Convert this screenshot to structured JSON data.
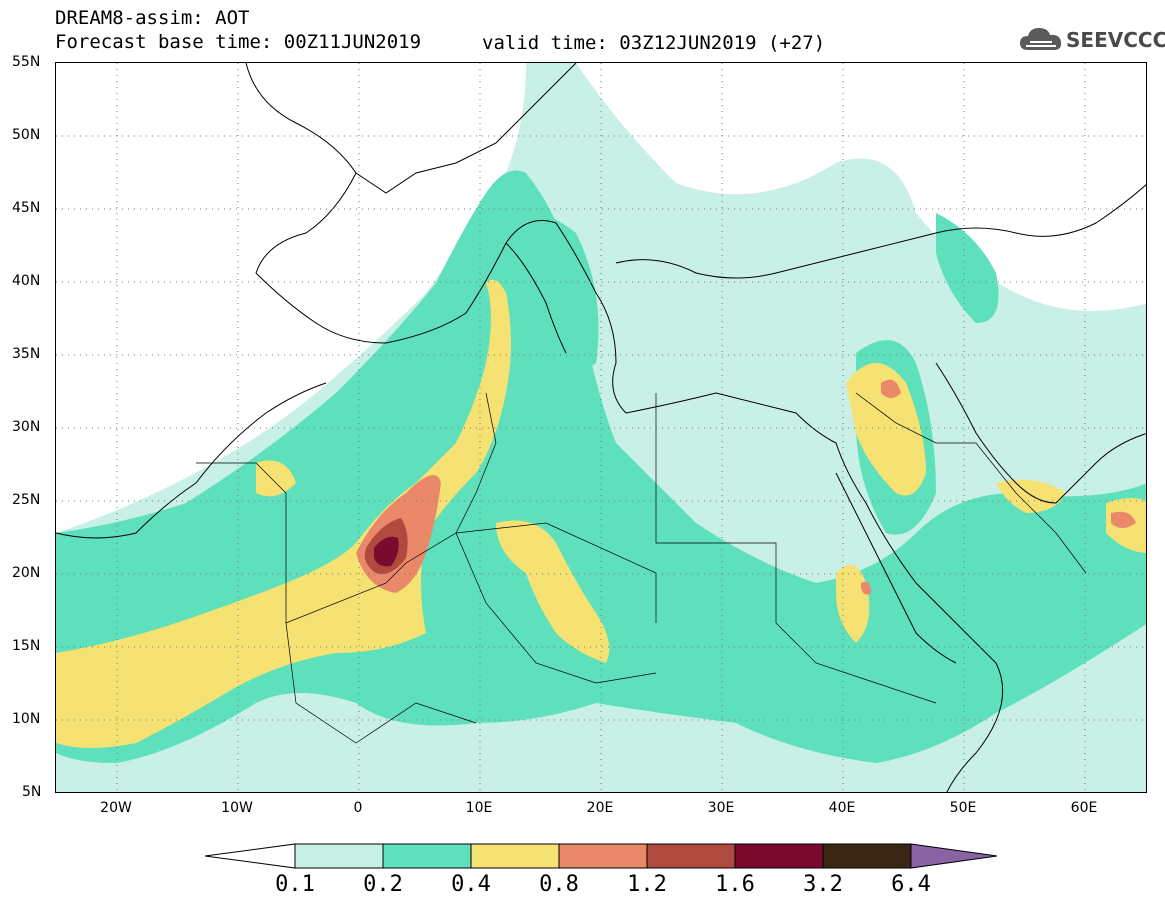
{
  "header": {
    "title": "DREAM8-assim: AOT",
    "base_time": "Forecast base time: 00Z11JUN2019",
    "valid_time": "valid time: 03Z12JUN2019 (+27)",
    "logo_text": "SEEVCCC"
  },
  "axes": {
    "lat_labels": [
      "55N",
      "50N",
      "45N",
      "40N",
      "35N",
      "30N",
      "25N",
      "20N",
      "15N",
      "10N",
      "5N"
    ],
    "lon_labels": [
      "20W",
      "10W",
      "0",
      "10E",
      "20E",
      "30E",
      "40E",
      "50E",
      "60E"
    ]
  },
  "colorbar": {
    "labels": [
      "0.1",
      "0.2",
      "0.4",
      "0.8",
      "1.2",
      "1.6",
      "3.2",
      "6.4"
    ],
    "colors": [
      "#c8f0e6",
      "#5ee0bc",
      "#f5e273",
      "#e9896a",
      "#b04a3e",
      "#7a0a2e",
      "#3b2614",
      "#8a63a4"
    ]
  },
  "map": {
    "extent": {
      "lon": [
        -25,
        65
      ],
      "lat": [
        5,
        55
      ]
    },
    "gridlines": "dotted",
    "field": "Aerosol Optical Thickness"
  }
}
